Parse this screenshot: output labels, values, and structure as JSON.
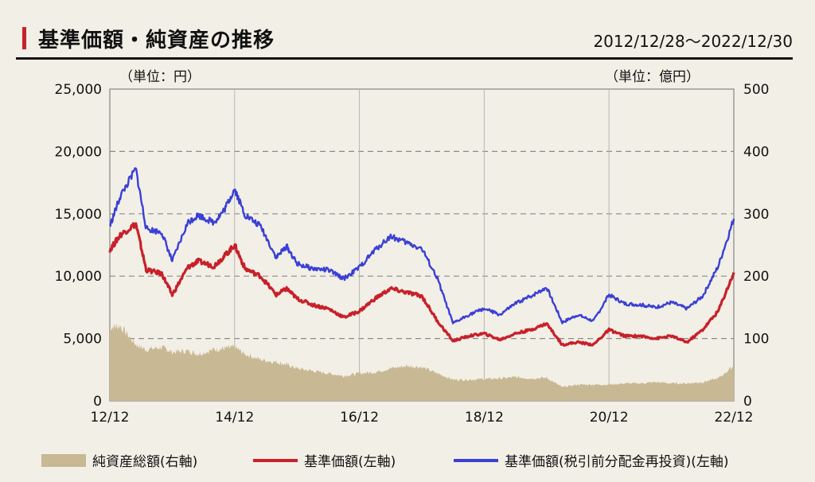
{
  "header": {
    "title": "基準価額・純資産の推移",
    "period": "2012/12/28～2022/12/30"
  },
  "units": {
    "left": "（単位：円）",
    "right": "（単位：億円）"
  },
  "colors": {
    "navy": "#3a3fd6",
    "nav": "#c8202a",
    "assets": "#c8b893",
    "accent": "#c3242b",
    "background": "#f2efe6"
  },
  "chart_data": {
    "type": "line",
    "x_type": "date",
    "x_ticks": [
      "12/12",
      "14/12",
      "16/12",
      "18/12",
      "20/12",
      "22/12"
    ],
    "y_left_ticks": [
      "0",
      "5,000",
      "10,000",
      "15,000",
      "20,000",
      "25,000"
    ],
    "y_right_ticks": [
      "0",
      "100",
      "200",
      "300",
      "400",
      "500"
    ],
    "y_left_range": [
      0,
      25000
    ],
    "y_right_range": [
      0,
      500
    ],
    "x_range": [
      "2012-12",
      "2022-12"
    ],
    "grid": "horizontal dashed",
    "legend_position": "bottom",
    "x": [
      "2012-12",
      "2013-02",
      "2013-05",
      "2013-07",
      "2013-10",
      "2013-12",
      "2014-03",
      "2014-05",
      "2014-08",
      "2014-10",
      "2014-12",
      "2015-02",
      "2015-05",
      "2015-08",
      "2015-10",
      "2015-12",
      "2016-03",
      "2016-06",
      "2016-09",
      "2016-12",
      "2017-03",
      "2017-06",
      "2017-09",
      "2017-12",
      "2018-03",
      "2018-06",
      "2018-09",
      "2018-12",
      "2019-03",
      "2019-06",
      "2019-09",
      "2019-12",
      "2020-03",
      "2020-06",
      "2020-09",
      "2020-12",
      "2021-03",
      "2021-06",
      "2021-09",
      "2021-12",
      "2022-03",
      "2022-06",
      "2022-09",
      "2022-12"
    ],
    "series": [
      {
        "name": "純資産総額(右軸)",
        "axis": "right",
        "style": "area",
        "values": [
          118,
          120,
          90,
          82,
          86,
          78,
          80,
          75,
          82,
          84,
          86,
          75,
          66,
          62,
          58,
          52,
          48,
          44,
          40,
          44,
          46,
          52,
          56,
          54,
          44,
          34,
          34,
          35,
          36,
          38,
          36,
          37,
          22,
          26,
          26,
          26,
          28,
          28,
          30,
          28,
          28,
          30,
          36,
          56
        ]
      },
      {
        "name": "基準価額(左軸)",
        "axis": "left",
        "values": [
          12100,
          13300,
          14200,
          10500,
          10200,
          8500,
          10700,
          11200,
          10800,
          11600,
          12500,
          10600,
          10000,
          8500,
          9000,
          8200,
          7700,
          7400,
          6700,
          7200,
          8200,
          9000,
          8700,
          8400,
          6400,
          4800,
          5200,
          5400,
          4900,
          5400,
          5700,
          6200,
          4500,
          4700,
          4500,
          5700,
          5200,
          5200,
          5000,
          5200,
          4700,
          5700,
          7200,
          10300
        ]
      },
      {
        "name": "基準価額(税引前分配金再投資)(左軸)",
        "axis": "left",
        "values": [
          14000,
          16400,
          18600,
          13800,
          13500,
          11200,
          14300,
          14900,
          14300,
          15300,
          17000,
          14900,
          14000,
          11500,
          12400,
          11000,
          10600,
          10500,
          9800,
          10700,
          12100,
          13200,
          12700,
          12200,
          9800,
          6200,
          6900,
          7400,
          6900,
          7800,
          8400,
          9100,
          6300,
          6900,
          6400,
          8500,
          7800,
          7700,
          7500,
          7900,
          7400,
          8400,
          10800,
          14600
        ]
      }
    ]
  }
}
